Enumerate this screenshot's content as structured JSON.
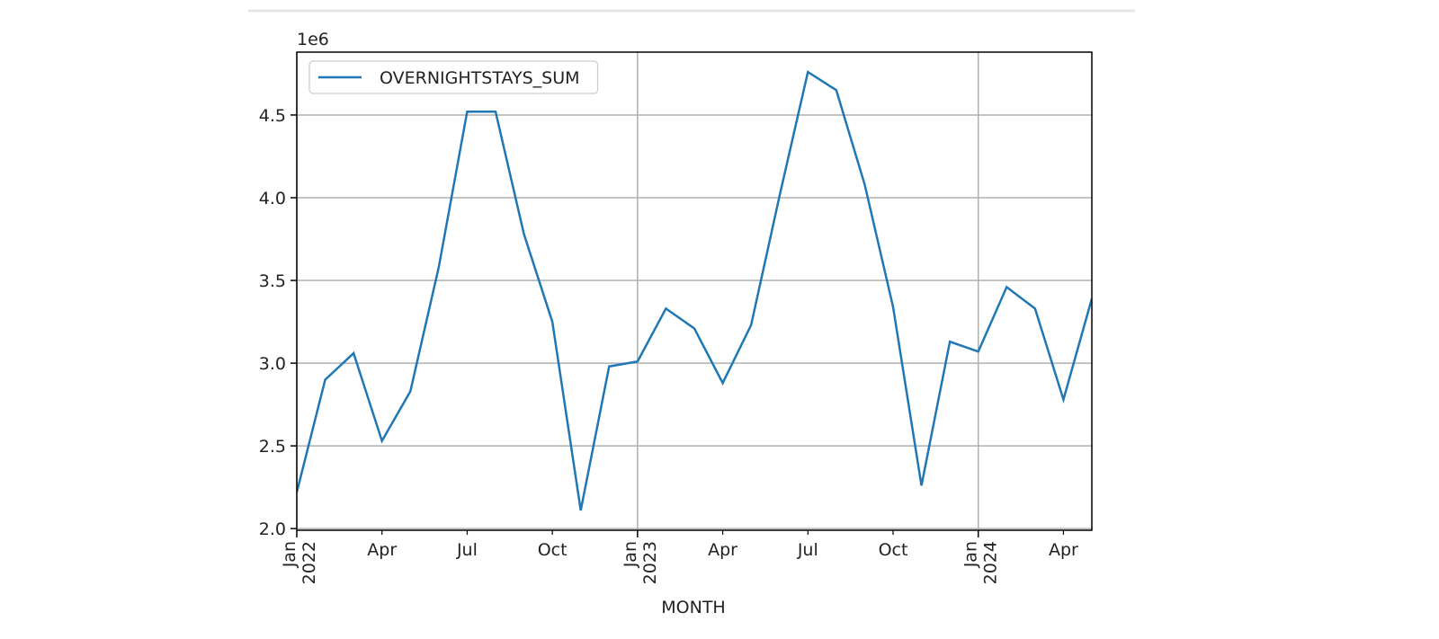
{
  "chart_data": {
    "type": "line",
    "offset_label": "1e6",
    "xlabel": "MONTH",
    "x": [
      "2022-01",
      "2022-02",
      "2022-03",
      "2022-04",
      "2022-05",
      "2022-06",
      "2022-07",
      "2022-08",
      "2022-09",
      "2022-10",
      "2022-11",
      "2022-12",
      "2023-01",
      "2023-02",
      "2023-03",
      "2023-04",
      "2023-05",
      "2023-06",
      "2023-07",
      "2023-08",
      "2023-09",
      "2023-10",
      "2023-11",
      "2023-12",
      "2024-01",
      "2024-02",
      "2024-03",
      "2024-04",
      "2024-05"
    ],
    "series": [
      {
        "name": "OVERNIGHTSTAYS_SUM",
        "color": "#1f77b4",
        "values": [
          2.22,
          2.9,
          3.06,
          2.53,
          2.83,
          3.58,
          4.52,
          4.52,
          3.78,
          3.25,
          2.11,
          2.98,
          3.01,
          3.33,
          3.21,
          2.88,
          3.23,
          4.01,
          4.76,
          4.65,
          4.08,
          3.34,
          2.26,
          3.13,
          3.07,
          3.46,
          3.33,
          2.78,
          3.39
        ]
      }
    ],
    "xlim": [
      "2022-01",
      "2024-05"
    ],
    "xticks": [
      {
        "value": "2022-01",
        "label": "Jan",
        "year": "2022"
      },
      {
        "value": "2023-01",
        "label": "Jan",
        "year": "2023"
      },
      {
        "value": "2024-01",
        "label": "Jan",
        "year": "2024"
      }
    ],
    "xminorticks": [
      {
        "value": "2022-04",
        "label": "Apr"
      },
      {
        "value": "2022-07",
        "label": "Jul"
      },
      {
        "value": "2022-10",
        "label": "Oct"
      },
      {
        "value": "2023-04",
        "label": "Apr"
      },
      {
        "value": "2023-07",
        "label": "Jul"
      },
      {
        "value": "2023-10",
        "label": "Oct"
      },
      {
        "value": "2024-04",
        "label": "Apr"
      }
    ],
    "ylim": [
      1.99,
      4.88
    ],
    "yticks": [
      {
        "value": 2,
        "label": "2.0"
      },
      {
        "value": 2.5,
        "label": "2.5"
      },
      {
        "value": 3,
        "label": "3.0"
      },
      {
        "value": 3.5,
        "label": "3.5"
      },
      {
        "value": 4,
        "label": "4.0"
      },
      {
        "value": 4.5,
        "label": "4.5"
      }
    ],
    "grid": true,
    "legend": "upper left"
  }
}
